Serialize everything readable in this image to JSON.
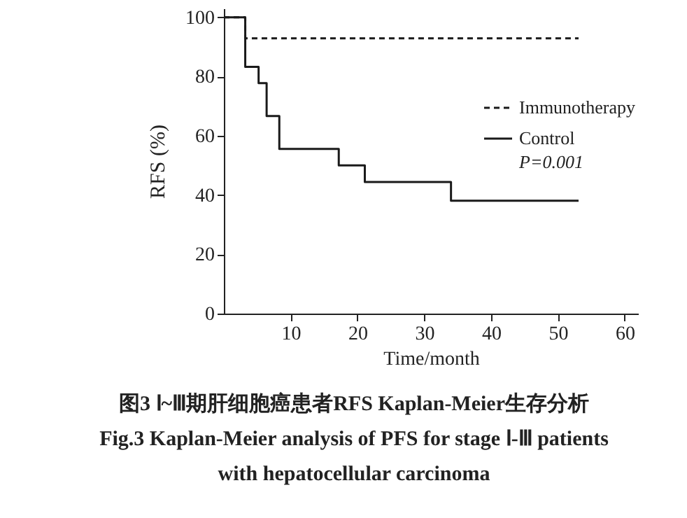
{
  "chart_data": {
    "type": "step",
    "xlabel": "Time/month",
    "ylabel": "RFS (%)",
    "xlim": [
      0,
      62
    ],
    "ylim": [
      0,
      103
    ],
    "xticks": [
      10,
      20,
      30,
      40,
      50,
      60
    ],
    "yticks": [
      0,
      20,
      40,
      60,
      80,
      100
    ],
    "grid": false,
    "legend": "right",
    "marker": "none",
    "series": [
      {
        "name": "Immunotherapy",
        "color": "#1a1a1a",
        "line_style": "dashed",
        "x": [
          0,
          3.2,
          53.1
        ],
        "values": [
          100,
          92.9,
          92.9
        ]
      },
      {
        "name": "Control",
        "color": "#1a1a1a",
        "line_style": "solid",
        "x": [
          0,
          3.2,
          5.2,
          6.4,
          8.3,
          17.2,
          21.1,
          34,
          53.1
        ],
        "values": [
          100,
          83.3,
          77.8,
          66.7,
          55.6,
          50,
          44.4,
          38.1,
          38.1
        ]
      }
    ],
    "annotations": [
      "P=0.001",
      "图3 Ⅰ~Ⅲ期肝细胞癌患者RFS Kaplan-Meier生存分析",
      "Fig.3 Kaplan-Meier analysis of PFS for stage Ⅰ-Ⅲ patients with hepatocellular carcinoma"
    ]
  }
}
